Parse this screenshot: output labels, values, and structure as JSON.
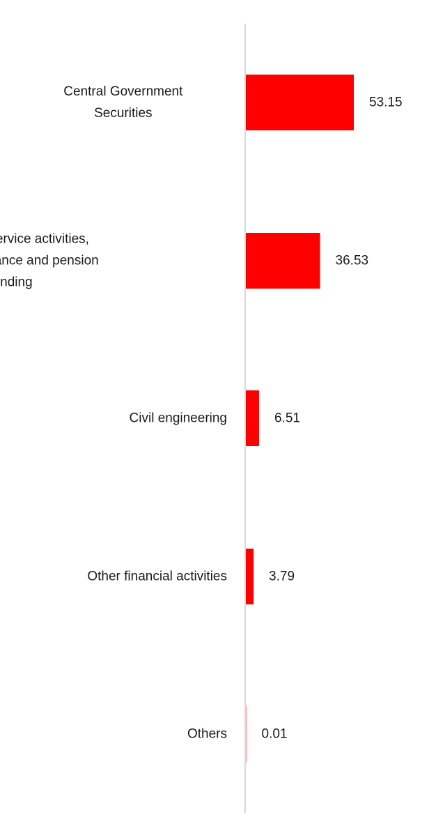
{
  "chart_data": {
    "type": "bar",
    "orientation": "horizontal",
    "categories": [
      [
        "Central Government",
        "Securities"
      ],
      [
        "Financial service activities,",
        "except insurance and pension",
        "funding"
      ],
      [
        "Civil engineering"
      ],
      [
        "Other financial activities"
      ],
      [
        "Others"
      ]
    ],
    "values": [
      53.15,
      36.53,
      6.51,
      3.79,
      0.01
    ],
    "value_labels": [
      "53.15",
      "36.53",
      "6.51",
      "3.79",
      "0.01"
    ],
    "title": "",
    "xlabel": "",
    "ylabel": "",
    "xlim": [
      0,
      60
    ],
    "grid": false,
    "legend": "none",
    "colors": {
      "bar": "#ff0000",
      "axis": "#d9d9d9",
      "text": "#1a1a1a"
    }
  }
}
